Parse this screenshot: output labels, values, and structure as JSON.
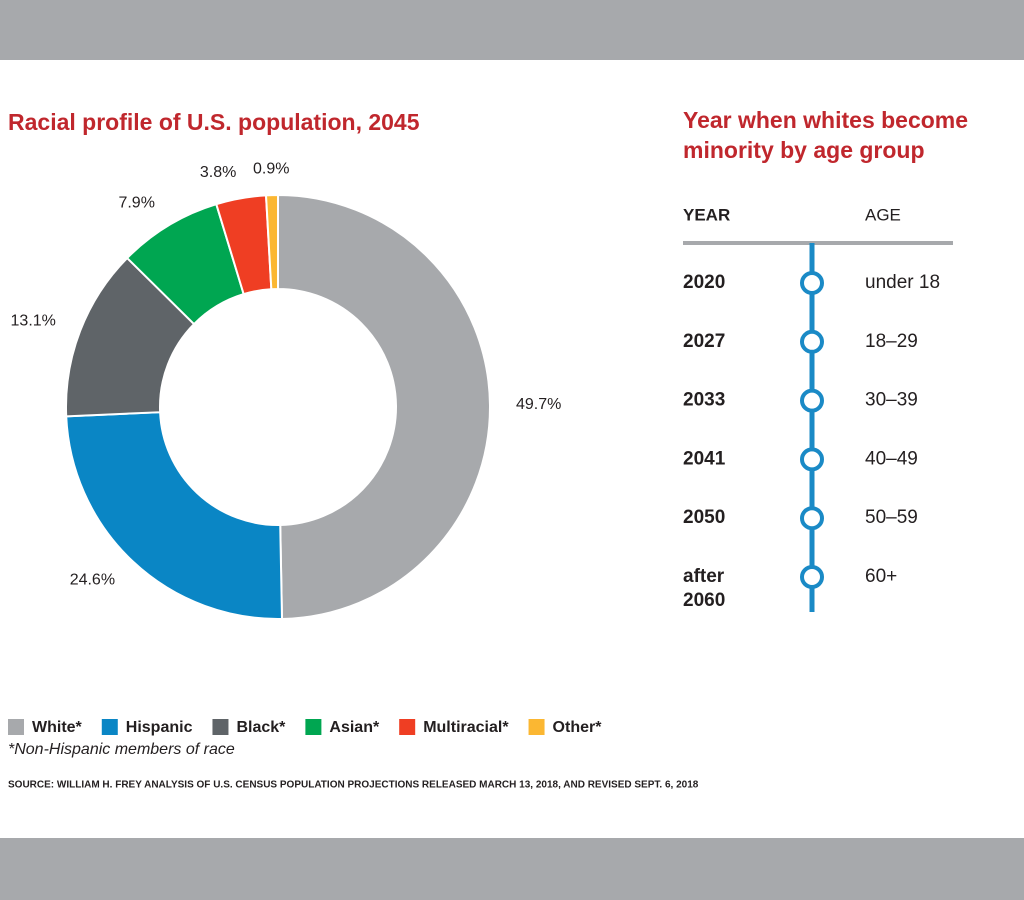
{
  "chart_data": {
    "type": "donut",
    "title": "Racial profile of U.S. population, 2045",
    "categories": [
      "White*",
      "Hispanic",
      "Black*",
      "Asian*",
      "Multiracial*",
      "Other*"
    ],
    "values": [
      49.7,
      24.6,
      13.1,
      7.9,
      3.8,
      0.9
    ],
    "value_labels": [
      "49.7%",
      "24.6%",
      "13.1%",
      "7.9%",
      "3.8%",
      "0.9%"
    ],
    "colors": [
      "#a7a9ac",
      "#0a86c5",
      "#5f6468",
      "#00a651",
      "#ef3e23",
      "#fbb732"
    ],
    "legend": "bottom",
    "footnote": "*Non-Hispanic members of race",
    "source": "SOURCE: WILLIAM H. FREY ANALYSIS OF U.S. CENSUS POPULATION PROJECTIONS RELEASED MARCH 13, 2018, AND REVISED SEPT. 6, 2018"
  },
  "timeline": {
    "title_lines": [
      "Year when whites become",
      "minority by age group"
    ],
    "headers": [
      "YEAR",
      "AGE"
    ],
    "rows": [
      {
        "year": [
          "2020"
        ],
        "age": "under 18"
      },
      {
        "year": [
          "2027"
        ],
        "age": "18–29"
      },
      {
        "year": [
          "2033"
        ],
        "age": "30–39"
      },
      {
        "year": [
          "2041"
        ],
        "age": "40–49"
      },
      {
        "year": [
          "2050"
        ],
        "age": "50–59"
      },
      {
        "year": [
          "after",
          "2060"
        ],
        "age": "60+"
      }
    ]
  }
}
